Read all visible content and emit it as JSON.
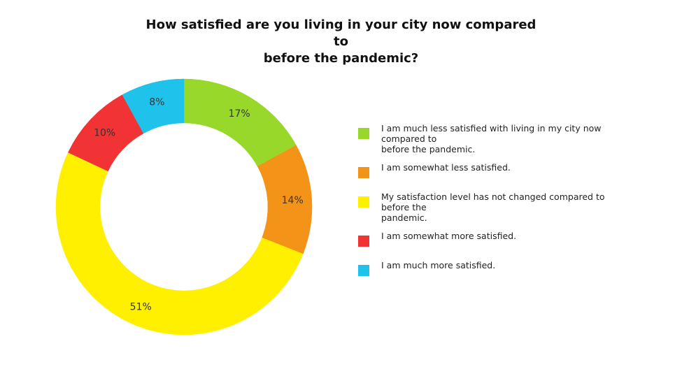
{
  "chart_data": {
    "type": "pie",
    "title_lines": [
      "How satisfied are you living in your city now compared to",
      "before the pandemic?"
    ],
    "donut": true,
    "slices": [
      {
        "label": "I am much less satisfied with living in my city now compared to before the pandemic.",
        "label_lines": [
          "I am much less satisfied with living in my city now compared to",
          "before the pandemic."
        ],
        "value": 17,
        "display": "17%",
        "color": "#97d82a"
      },
      {
        "label": "I am somewhat less satisfied.",
        "label_lines": [
          "I am somewhat less satisfied."
        ],
        "value": 14,
        "display": "14%",
        "color": "#f39418"
      },
      {
        "label": "My satisfaction level has not changed compared to before the pandemic.",
        "label_lines": [
          "My satisfaction level has not changed compared to before the",
          "pandemic."
        ],
        "value": 51,
        "display": "51%",
        "color": "#fff000"
      },
      {
        "label": "I am somewhat more satisfied.",
        "label_lines": [
          "I am somewhat more satisfied."
        ],
        "value": 10,
        "display": "10%",
        "color": "#f23335"
      },
      {
        "label": "I am much more satisfied.",
        "label_lines": [
          "I am much more satisfied."
        ],
        "value": 8,
        "display": "8%",
        "color": "#1fc2ea"
      }
    ],
    "legend_position": "right"
  }
}
